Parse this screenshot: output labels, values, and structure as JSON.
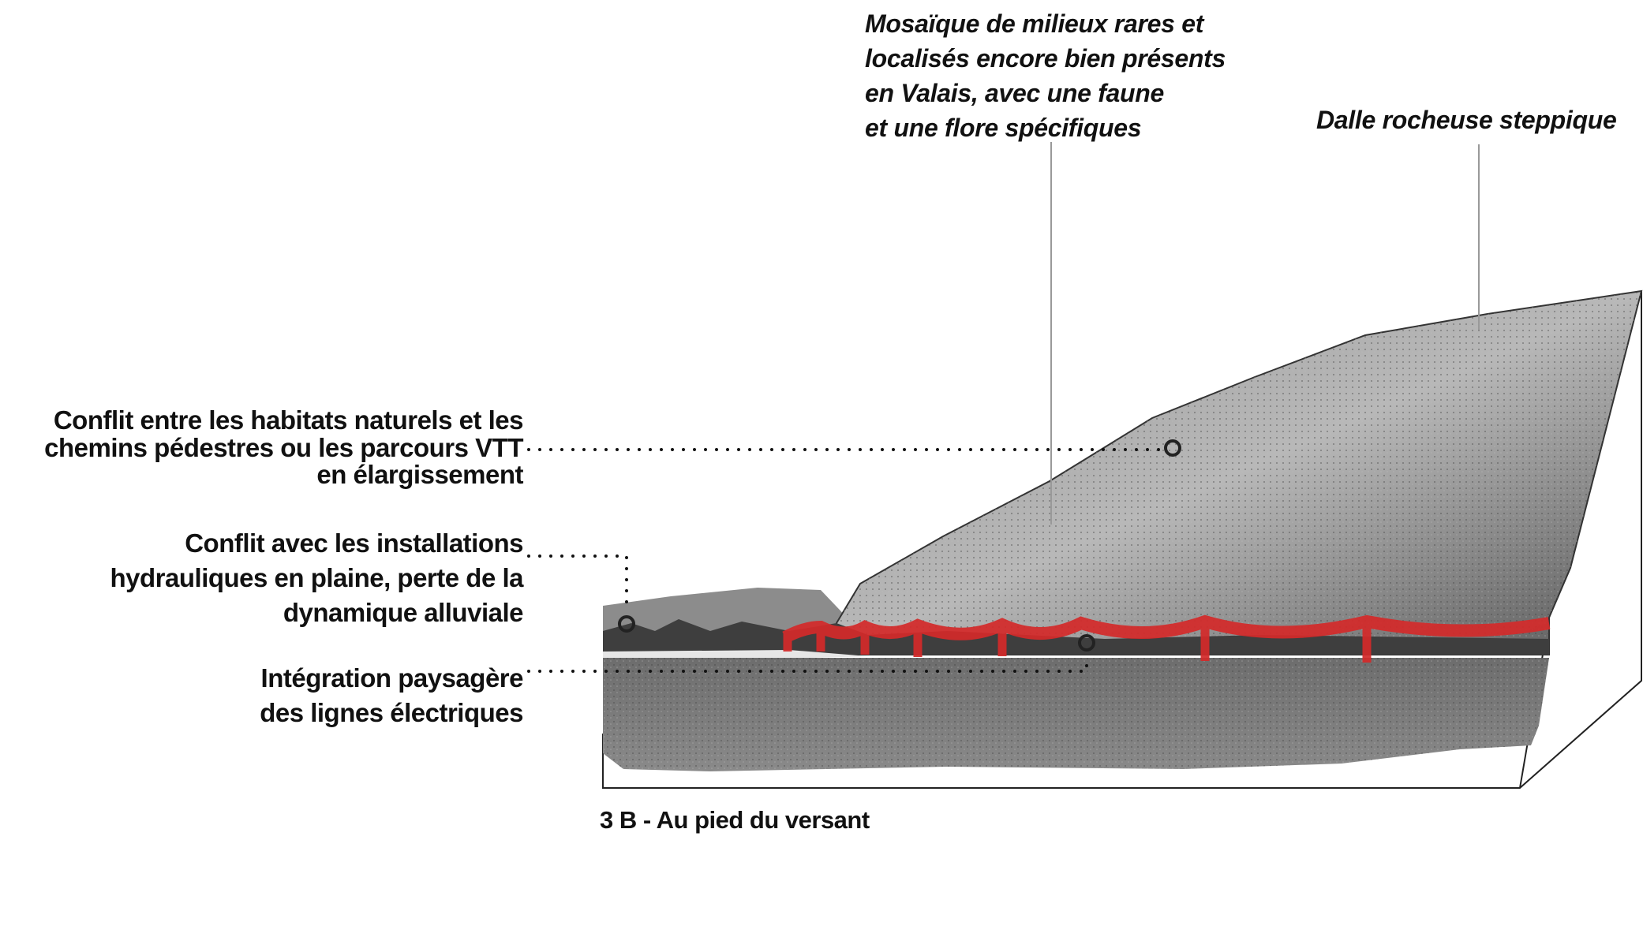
{
  "annotations_top": [
    {
      "lines": [
        "Mosaïque de milieux rares et",
        "localisés encore bien présents",
        "en Valais, avec une faune",
        "et une flore spécifiques"
      ]
    },
    {
      "lines": [
        "Dalle rocheuse steppique"
      ]
    }
  ],
  "annotations_left": [
    {
      "lines": [
        "Conflit entre les habitats naturels et les",
        "chemins pédestres ou les parcours VTT",
        "en élargissement"
      ]
    },
    {
      "lines": [
        "Conflit avec les installations",
        "hydrauliques en plaine, perte de la",
        "dynamique alluviale"
      ]
    },
    {
      "lines": [
        "Intégration paysagère",
        "des lignes électriques"
      ]
    }
  ],
  "caption": "3 B - Au pied du versant",
  "colors": {
    "power_line": "#d42a2a",
    "text": "#111111",
    "terrain": "#7a7a7a"
  }
}
